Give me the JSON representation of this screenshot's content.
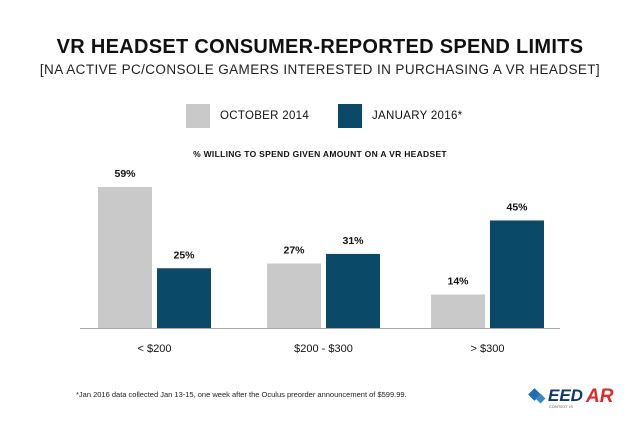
{
  "header": {
    "title": "VR HEADSET CONSUMER-REPORTED SPEND LIMITS",
    "subtitle": "[NA ACTIVE PC/CONSOLE GAMERS INTERESTED IN PURCHASING A VR HEADSET]"
  },
  "legend": {
    "items": [
      {
        "label": "OCTOBER 2014",
        "color": "#c9c9c9"
      },
      {
        "label": "JANUARY 2016*",
        "color": "#0b4968"
      }
    ]
  },
  "footnote": "*Jan 2016 data collected Jan 13-15, one week after the Oculus preorder announcement of $599.99.",
  "logo": {
    "text": "EED",
    "accent_text": "AR",
    "tagline": "CONTEXT IS"
  },
  "chart_data": {
    "type": "bar",
    "title": "% WILLING TO SPEND GIVEN AMOUNT ON A VR HEADSET",
    "categories": [
      "< $200",
      "$200 - $300",
      "> $300"
    ],
    "series": [
      {
        "name": "OCTOBER 2014",
        "color": "#c9c9c9",
        "values": [
          59,
          27,
          14
        ],
        "labels": [
          "59%",
          "27%",
          "14%"
        ]
      },
      {
        "name": "JANUARY 2016*",
        "color": "#0b4968",
        "values": [
          25,
          31,
          45
        ],
        "labels": [
          "25%",
          "31%",
          "45%"
        ]
      }
    ],
    "ylim": [
      0,
      59
    ],
    "grid": false,
    "legend_position": "top"
  }
}
